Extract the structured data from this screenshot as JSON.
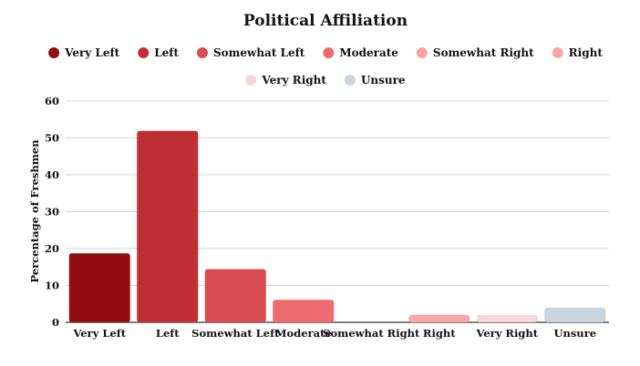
{
  "chart_data": {
    "type": "bar",
    "title": "Political Affiliation",
    "ylabel": "Percentage of Freshmen",
    "xlabel": "",
    "categories": [
      "Very Left",
      "Left",
      "Somewhat Left",
      "Moderate",
      "Somewhat Right",
      "Right",
      "Very Right",
      "Unsure"
    ],
    "values": [
      18.7,
      51.9,
      14.4,
      6.1,
      0,
      2.0,
      2.0,
      4.0
    ],
    "colors": [
      "#920d0f",
      "#c12f36",
      "#d84b51",
      "#ec6c6f",
      "#f6a3a3",
      "#f8a8a8",
      "#f7d6d6",
      "#cbd5de"
    ],
    "ylim": [
      0,
      60
    ],
    "yticks": [
      0,
      10,
      20,
      30,
      40,
      50,
      60
    ],
    "grid": true,
    "legend_position": "top"
  }
}
